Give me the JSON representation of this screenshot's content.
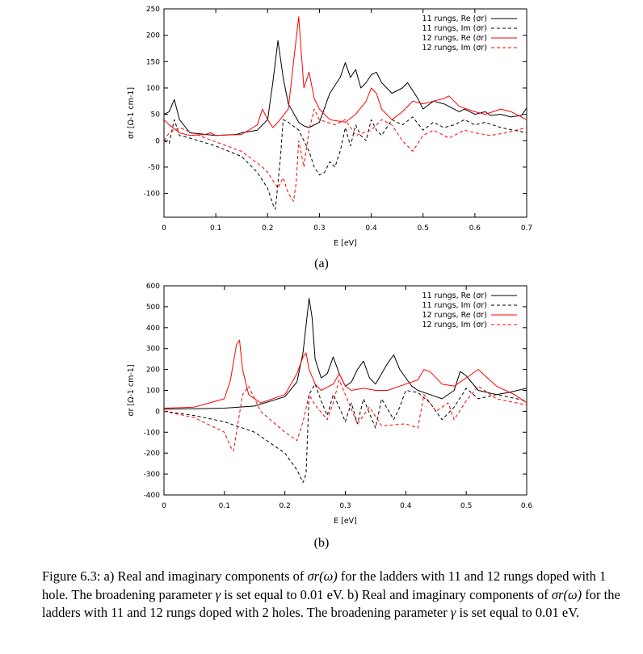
{
  "chart_data": [
    {
      "type": "line",
      "panel_label": "(a)",
      "xlabel": "E [eV]",
      "ylabel": "σr [Ω-1 cm-1]",
      "xlim": [
        0,
        0.7
      ],
      "ylim": [
        -145,
        250
      ],
      "xticks": [
        0,
        0.1,
        0.2,
        0.3,
        0.4,
        0.5,
        0.6,
        0.7
      ],
      "xtick_labels": [
        "0",
        "0.1",
        "0.2",
        "0.3",
        "0.4",
        "0.5",
        "0.6",
        "0.7"
      ],
      "yticks": [
        -100,
        -50,
        0,
        50,
        100,
        150,
        200,
        250
      ],
      "ytick_labels": [
        "-100",
        "-50",
        "0",
        "50",
        "100",
        "150",
        "200",
        "250"
      ],
      "legend_position": "top-right",
      "series": [
        {
          "name": "11 rungs, Re (σr)",
          "color": "#000000",
          "dash": "solid",
          "x": [
            0,
            0.01,
            0.02,
            0.03,
            0.05,
            0.1,
            0.14,
            0.15,
            0.18,
            0.2,
            0.21,
            0.22,
            0.23,
            0.24,
            0.26,
            0.27,
            0.28,
            0.3,
            0.32,
            0.34,
            0.35,
            0.36,
            0.37,
            0.38,
            0.39,
            0.4,
            0.41,
            0.42,
            0.44,
            0.46,
            0.47,
            0.49,
            0.5,
            0.52,
            0.54,
            0.55,
            0.57,
            0.58,
            0.6,
            0.62,
            0.63,
            0.65,
            0.67,
            0.69,
            0.7
          ],
          "y": [
            50,
            55,
            78,
            40,
            15,
            10,
            12,
            15,
            20,
            40,
            110,
            190,
            120,
            70,
            35,
            28,
            25,
            35,
            90,
            120,
            148,
            120,
            135,
            100,
            110,
            125,
            130,
            110,
            90,
            100,
            110,
            80,
            60,
            75,
            70,
            65,
            55,
            60,
            50,
            55,
            48,
            50,
            45,
            48,
            62
          ]
        },
        {
          "name": "11 rungs, Im (σr)",
          "color": "#000000",
          "dash": "dashed",
          "x": [
            0,
            0.01,
            0.02,
            0.03,
            0.05,
            0.1,
            0.15,
            0.18,
            0.2,
            0.21,
            0.215,
            0.22,
            0.225,
            0.23,
            0.24,
            0.26,
            0.28,
            0.29,
            0.3,
            0.31,
            0.32,
            0.33,
            0.34,
            0.35,
            0.36,
            0.37,
            0.38,
            0.39,
            0.4,
            0.41,
            0.42,
            0.44,
            0.46,
            0.48,
            0.5,
            0.52,
            0.54,
            0.56,
            0.58,
            0.6,
            0.62,
            0.65,
            0.7
          ],
          "y": [
            0,
            -5,
            40,
            10,
            5,
            -10,
            -30,
            -60,
            -90,
            -120,
            -130,
            -80,
            -30,
            40,
            35,
            20,
            -20,
            -50,
            -65,
            -60,
            -40,
            -50,
            -20,
            25,
            -10,
            30,
            10,
            0,
            40,
            20,
            10,
            40,
            30,
            45,
            20,
            35,
            25,
            30,
            40,
            30,
            35,
            25,
            15
          ]
        },
        {
          "name": "12 rungs, Re (σr)",
          "color": "#ff0000",
          "dash": "solid",
          "x": [
            0,
            0.01,
            0.03,
            0.05,
            0.08,
            0.09,
            0.1,
            0.15,
            0.18,
            0.19,
            0.2,
            0.21,
            0.22,
            0.24,
            0.25,
            0.26,
            0.27,
            0.28,
            0.29,
            0.3,
            0.32,
            0.35,
            0.37,
            0.39,
            0.4,
            0.41,
            0.42,
            0.44,
            0.46,
            0.48,
            0.5,
            0.52,
            0.54,
            0.55,
            0.57,
            0.6,
            0.62,
            0.65,
            0.67,
            0.7
          ],
          "y": [
            40,
            30,
            15,
            10,
            12,
            15,
            10,
            12,
            30,
            60,
            40,
            25,
            35,
            60,
            150,
            235,
            100,
            130,
            80,
            60,
            40,
            35,
            50,
            75,
            100,
            90,
            60,
            40,
            55,
            75,
            70,
            75,
            80,
            85,
            65,
            55,
            50,
            60,
            55,
            40
          ]
        },
        {
          "name": "12 rungs, Im (σr)",
          "color": "#ff0000",
          "dash": "dashed",
          "x": [
            0,
            0.01,
            0.03,
            0.08,
            0.15,
            0.19,
            0.2,
            0.21,
            0.22,
            0.23,
            0.24,
            0.25,
            0.255,
            0.26,
            0.27,
            0.28,
            0.29,
            0.3,
            0.33,
            0.35,
            0.37,
            0.4,
            0.42,
            0.44,
            0.46,
            0.48,
            0.5,
            0.52,
            0.55,
            0.58,
            0.6,
            0.63,
            0.66,
            0.7
          ],
          "y": [
            0,
            15,
            25,
            5,
            -20,
            -50,
            -60,
            -75,
            -90,
            -70,
            -100,
            -115,
            -80,
            0,
            -50,
            20,
            60,
            40,
            30,
            40,
            10,
            20,
            40,
            30,
            0,
            -20,
            10,
            20,
            5,
            20,
            15,
            10,
            15,
            25
          ]
        }
      ]
    },
    {
      "type": "line",
      "panel_label": "(b)",
      "xlabel": "E [eV]",
      "ylabel": "σr [Ω-1 cm-1]",
      "xlim": [
        0,
        0.6
      ],
      "ylim": [
        -400,
        600
      ],
      "xticks": [
        0,
        0.1,
        0.2,
        0.3,
        0.4,
        0.5,
        0.6
      ],
      "xtick_labels": [
        "0",
        "0.1",
        "0.2",
        "0.3",
        "0.4",
        "0.5",
        "0.6"
      ],
      "yticks": [
        -400,
        -300,
        -200,
        -100,
        0,
        100,
        200,
        300,
        400,
        500,
        600
      ],
      "ytick_labels": [
        "-400",
        "-300",
        "-200",
        "-100",
        "0",
        "100",
        "200",
        "300",
        "400",
        "500",
        "600"
      ],
      "legend_position": "top-right",
      "series": [
        {
          "name": "11 rungs, Re (σr)",
          "color": "#000000",
          "dash": "solid",
          "x": [
            0,
            0.05,
            0.1,
            0.15,
            0.2,
            0.22,
            0.23,
            0.24,
            0.245,
            0.25,
            0.26,
            0.27,
            0.28,
            0.29,
            0.3,
            0.31,
            0.32,
            0.33,
            0.34,
            0.35,
            0.36,
            0.37,
            0.38,
            0.39,
            0.4,
            0.41,
            0.42,
            0.44,
            0.46,
            0.48,
            0.49,
            0.5,
            0.52,
            0.55,
            0.57,
            0.6
          ],
          "y": [
            10,
            12,
            15,
            25,
            70,
            140,
            280,
            540,
            450,
            250,
            160,
            180,
            260,
            180,
            120,
            140,
            200,
            240,
            160,
            130,
            180,
            230,
            270,
            200,
            160,
            120,
            100,
            80,
            60,
            100,
            190,
            170,
            100,
            80,
            90,
            110
          ]
        },
        {
          "name": "11 rungs, Im (σr)",
          "color": "#000000",
          "dash": "dashed",
          "x": [
            0,
            0.05,
            0.1,
            0.15,
            0.2,
            0.22,
            0.23,
            0.235,
            0.24,
            0.25,
            0.26,
            0.27,
            0.28,
            0.29,
            0.3,
            0.31,
            0.32,
            0.33,
            0.34,
            0.35,
            0.36,
            0.38,
            0.39,
            0.4,
            0.42,
            0.44,
            0.46,
            0.48,
            0.5,
            0.52,
            0.55,
            0.6
          ],
          "y": [
            0,
            -20,
            -50,
            -100,
            -200,
            -280,
            -340,
            -300,
            80,
            130,
            50,
            -20,
            80,
            20,
            -50,
            40,
            -60,
            60,
            -10,
            -80,
            60,
            -40,
            20,
            100,
            90,
            40,
            -40,
            20,
            110,
            60,
            80,
            50
          ]
        },
        {
          "name": "12 rungs, Re (σr)",
          "color": "#ff0000",
          "dash": "solid",
          "x": [
            0,
            0.05,
            0.1,
            0.11,
            0.12,
            0.125,
            0.13,
            0.14,
            0.16,
            0.2,
            0.22,
            0.23,
            0.235,
            0.24,
            0.25,
            0.26,
            0.28,
            0.29,
            0.3,
            0.31,
            0.33,
            0.35,
            0.37,
            0.4,
            0.42,
            0.43,
            0.44,
            0.46,
            0.48,
            0.5,
            0.52,
            0.55,
            0.58,
            0.6
          ],
          "y": [
            15,
            20,
            60,
            150,
            320,
            340,
            200,
            80,
            40,
            80,
            180,
            260,
            280,
            200,
            130,
            100,
            130,
            180,
            120,
            100,
            110,
            100,
            100,
            130,
            150,
            200,
            190,
            130,
            120,
            160,
            200,
            120,
            80,
            40
          ]
        },
        {
          "name": "12 rungs, Im (σr)",
          "color": "#ff0000",
          "dash": "dashed",
          "x": [
            0,
            0.05,
            0.1,
            0.11,
            0.115,
            0.12,
            0.13,
            0.14,
            0.16,
            0.2,
            0.22,
            0.23,
            0.24,
            0.25,
            0.27,
            0.28,
            0.29,
            0.3,
            0.32,
            0.34,
            0.36,
            0.4,
            0.42,
            0.43,
            0.45,
            0.47,
            0.48,
            0.5,
            0.52,
            0.55,
            0.6
          ],
          "y": [
            0,
            -30,
            -100,
            -170,
            -190,
            -100,
            80,
            120,
            0,
            -100,
            -140,
            -50,
            80,
            30,
            -40,
            40,
            150,
            80,
            -60,
            20,
            -70,
            -60,
            -80,
            80,
            0,
            40,
            -40,
            50,
            120,
            60,
            30
          ]
        }
      ]
    }
  ],
  "panels": {
    "a": {
      "label": "(a)"
    },
    "b": {
      "label": "(b)"
    }
  },
  "caption": {
    "p1": "Figure 6.3: a) Real and imaginary components of ",
    "sym1": "σr(ω)",
    "p2": " for the ladders with 11 and 12 rungs doped with 1 hole. The broadening parameter ",
    "sym2": "γ",
    "p3": " is set equal to 0.01 eV. b) Real and imaginary components of ",
    "sym3": "σr(ω)",
    "p4": " for the ladders with 11 and 12 rungs doped with 2 holes. The broadening parameter ",
    "sym4": "γ",
    "p5": " is set equal to 0.01 eV."
  }
}
